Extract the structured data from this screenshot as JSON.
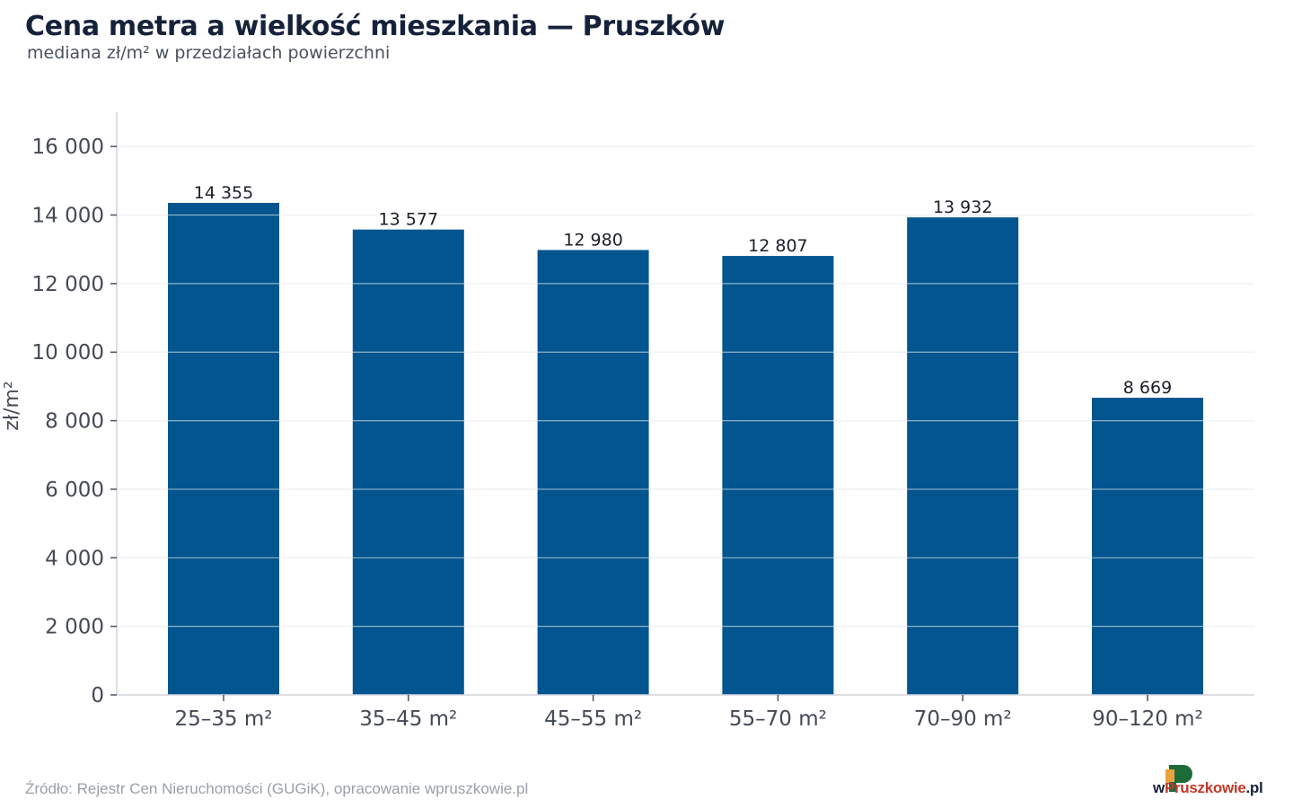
{
  "title": "Cena metra a wielkość mieszkania — Pruszków",
  "subtitle": "mediana zł/m² w przedziałach powierzchni",
  "source": "Źródło: Rejestr Cen Nieruchomości (GUGiK), opracowanie wpruszkowie.pl",
  "logo": {
    "prefix": "w",
    "accent": "Pruszkowie",
    "suffix": ".pl",
    "accent_color": "#c0392b",
    "mark_color": "#1e6b3a"
  },
  "chart_data": {
    "type": "bar",
    "categories": [
      "25–35 m²",
      "35–45 m²",
      "45–55 m²",
      "55–70 m²",
      "70–90 m²",
      "90–120 m²"
    ],
    "values": [
      14355,
      13577,
      12980,
      12807,
      13932,
      8669
    ],
    "value_labels": [
      "14 355",
      "13 577",
      "12 980",
      "12 807",
      "13 932",
      "8 669"
    ],
    "ylabel": "zł/m²",
    "xlabel": "",
    "ylim": [
      0,
      17000
    ],
    "yticks": [
      0,
      2000,
      4000,
      6000,
      8000,
      10000,
      12000,
      14000,
      16000
    ],
    "ytick_labels": [
      "0",
      "2 000",
      "4 000",
      "6 000",
      "8 000",
      "10 000",
      "12 000",
      "14 000",
      "16 000"
    ],
    "grid": true,
    "bar_color": "#03558f",
    "grid_color": "#e6e8eb"
  }
}
